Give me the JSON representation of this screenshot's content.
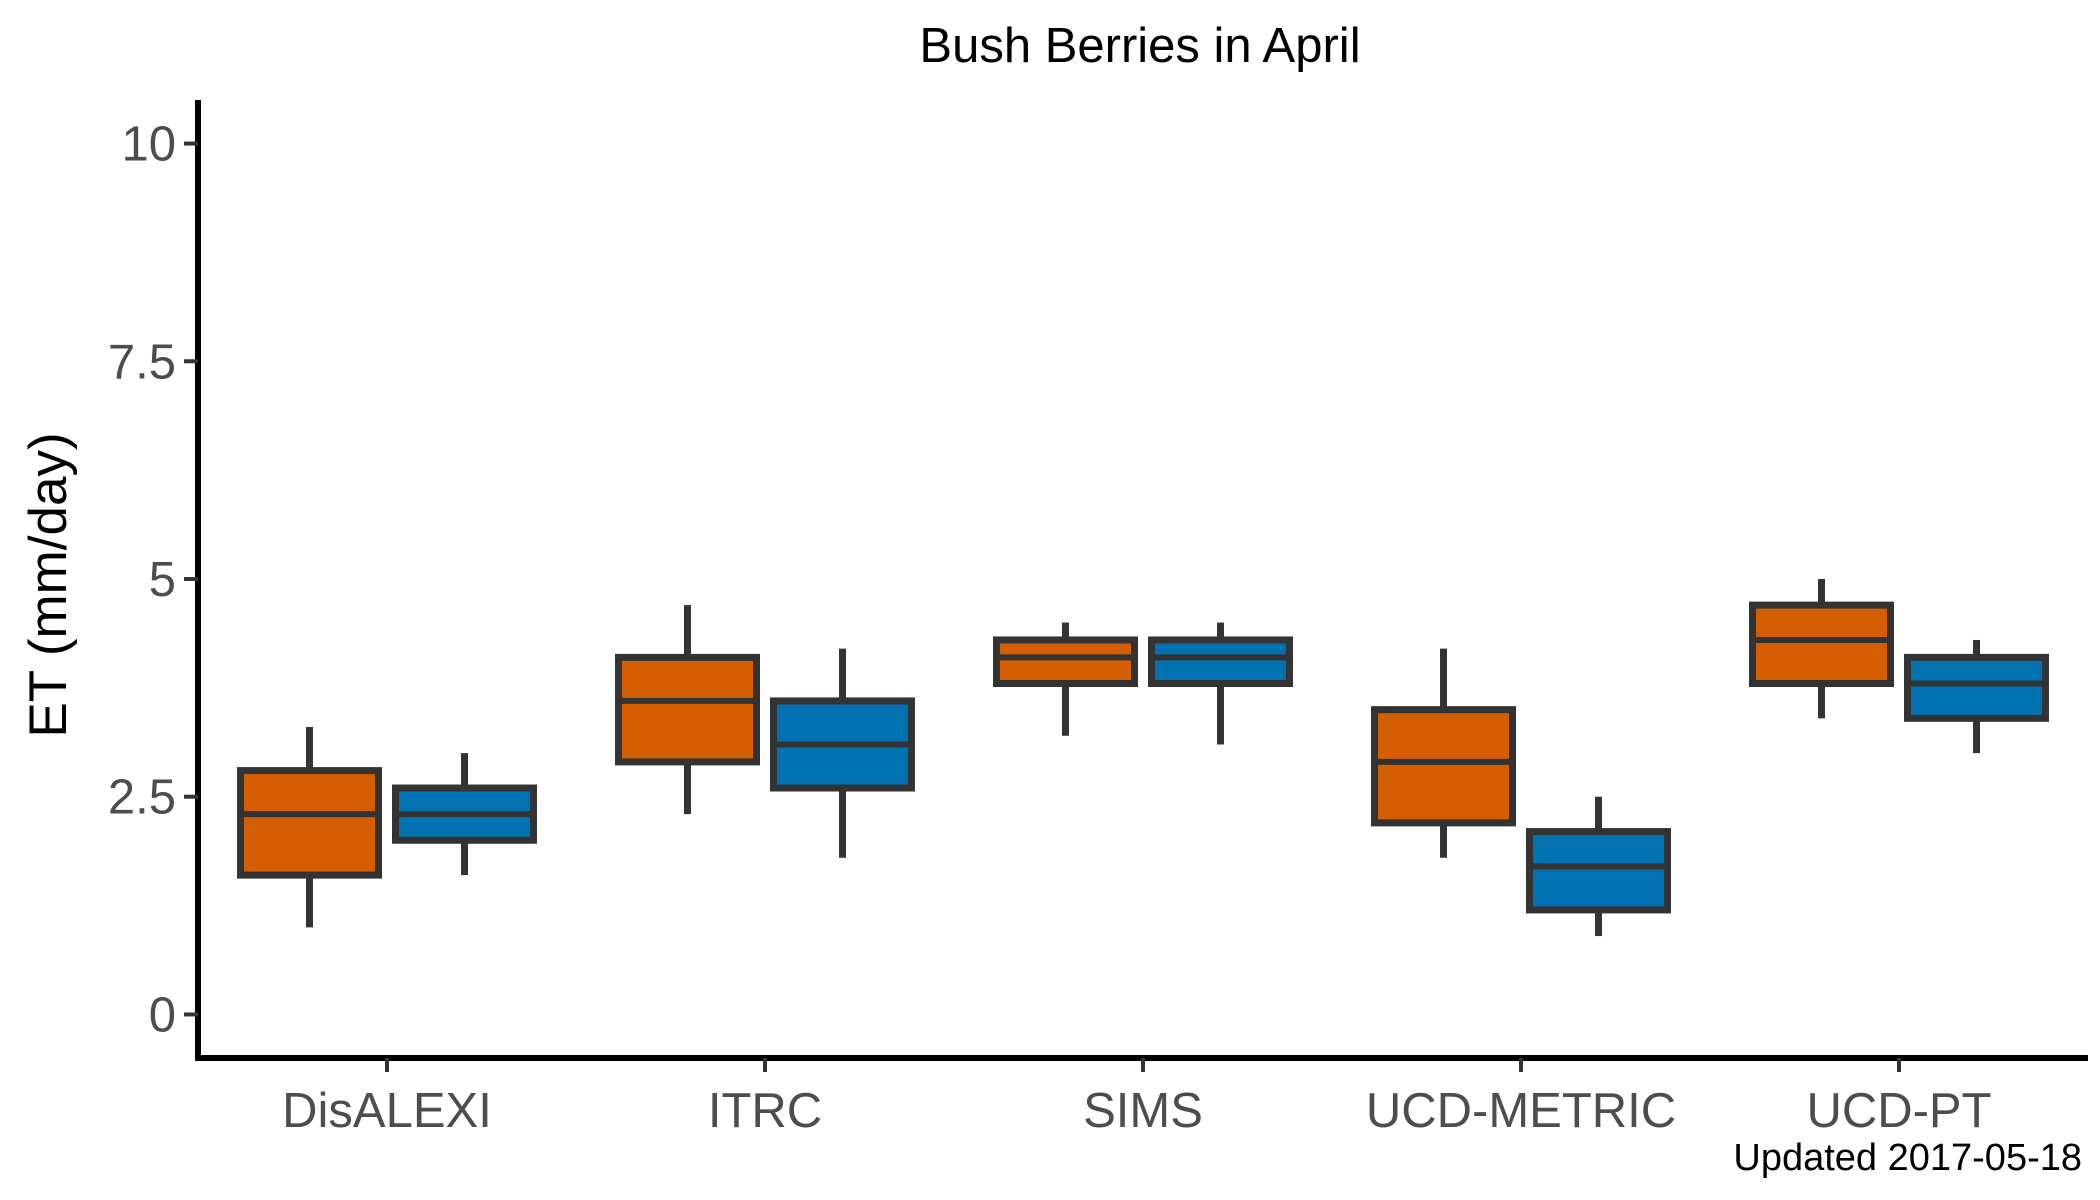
{
  "chart_data": {
    "type": "boxplot",
    "title": "Bush Berries in April",
    "xlabel": "",
    "ylabel": "ET (mm/day)",
    "ylim": [
      -0.5,
      10.5
    ],
    "yticks": [
      0,
      2.5,
      5,
      7.5,
      10
    ],
    "ytick_labels": [
      "0",
      "2.5",
      "5",
      "7.5",
      "10"
    ],
    "categories": [
      "DisALEXI",
      "ITRC",
      "SIMS",
      "UCD-METRIC",
      "UCD-PT"
    ],
    "grid": false,
    "legend": "none",
    "colors": {
      "series_a": "#d55e00",
      "series_b": "#0072b2",
      "box_outline": "#333333",
      "axis": "#000000"
    },
    "series": [
      {
        "color": "#d55e00",
        "boxes": [
          {
            "category": "DisALEXI",
            "min": 1.0,
            "q1": 1.6,
            "median": 2.3,
            "q3": 2.8,
            "max": 3.3
          },
          {
            "category": "ITRC",
            "min": 2.3,
            "q1": 2.9,
            "median": 3.6,
            "q3": 4.1,
            "max": 4.7
          },
          {
            "category": "SIMS",
            "min": 3.2,
            "q1": 3.8,
            "median": 4.1,
            "q3": 4.3,
            "max": 4.5
          },
          {
            "category": "UCD-METRIC",
            "min": 1.8,
            "q1": 2.2,
            "median": 2.9,
            "q3": 3.5,
            "max": 4.2
          },
          {
            "category": "UCD-PT",
            "min": 3.4,
            "q1": 3.8,
            "median": 4.3,
            "q3": 4.7,
            "max": 5.0
          }
        ]
      },
      {
        "color": "#0072b2",
        "boxes": [
          {
            "category": "DisALEXI",
            "min": 1.6,
            "q1": 2.0,
            "median": 2.3,
            "q3": 2.6,
            "max": 3.0
          },
          {
            "category": "ITRC",
            "min": 1.8,
            "q1": 2.6,
            "median": 3.1,
            "q3": 3.6,
            "max": 4.2
          },
          {
            "category": "SIMS",
            "min": 3.1,
            "q1": 3.8,
            "median": 4.1,
            "q3": 4.3,
            "max": 4.5
          },
          {
            "category": "UCD-METRIC",
            "min": 0.9,
            "q1": 1.2,
            "median": 1.7,
            "q3": 2.1,
            "max": 2.5
          },
          {
            "category": "UCD-PT",
            "min": 3.0,
            "q1": 3.4,
            "median": 3.8,
            "q3": 4.1,
            "max": 4.3
          }
        ]
      }
    ],
    "caption": "Updated  2017-05-18"
  }
}
